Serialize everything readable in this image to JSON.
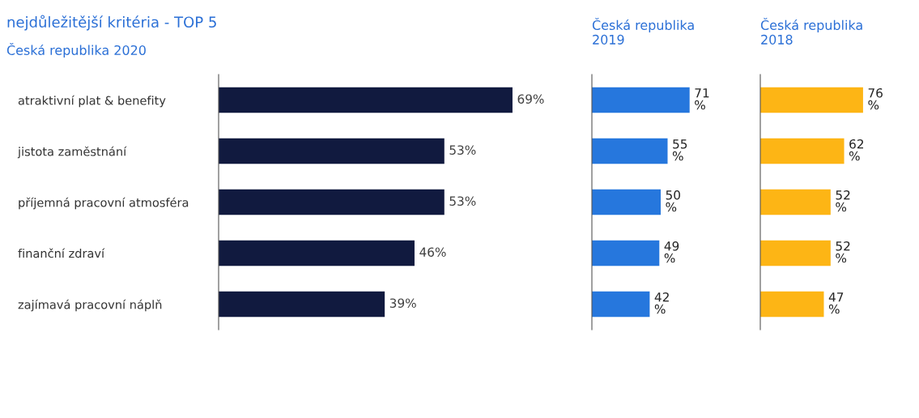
{
  "chart_data": [
    {
      "type": "bar",
      "orientation": "horizontal",
      "title": "nejdůležitější kritéria - TOP 5",
      "subtitle": "Česká republika 2020",
      "categories": [
        "atraktivní plat & benefity",
        "jistota zaměstnání",
        "příjemná pracovní atmosféra",
        "finanční zdraví",
        "zajímavá pracovní náplň"
      ],
      "values": [
        69,
        53,
        53,
        46,
        39
      ],
      "color": "#111a3f",
      "value_labels": [
        "69%",
        "53%",
        "53%",
        "46%",
        "39%"
      ],
      "tick_labels": "y",
      "grid": false,
      "legend": false
    },
    {
      "type": "bar",
      "orientation": "horizontal",
      "title": "Česká republika\n2019",
      "categories": [
        null,
        null,
        null,
        null,
        null
      ],
      "values": [
        71,
        55,
        50,
        49,
        42
      ],
      "color": "#2677dd",
      "value_labels": [
        "71\n%",
        "55\n%",
        "50\n%",
        "49\n%",
        "42\n%"
      ],
      "tick_labels": false,
      "grid": false,
      "legend": false
    },
    {
      "type": "bar",
      "orientation": "horizontal",
      "title": "Česká republika\n2018",
      "categories": [
        null,
        null,
        null,
        null,
        null
      ],
      "values": [
        76,
        62,
        52,
        52,
        47
      ],
      "color": "#fdb515",
      "value_labels": [
        "76\n%",
        "62\n%",
        "52\n%",
        "52\n%",
        "47\n%"
      ],
      "tick_labels": false,
      "grid": false,
      "legend": false
    }
  ]
}
